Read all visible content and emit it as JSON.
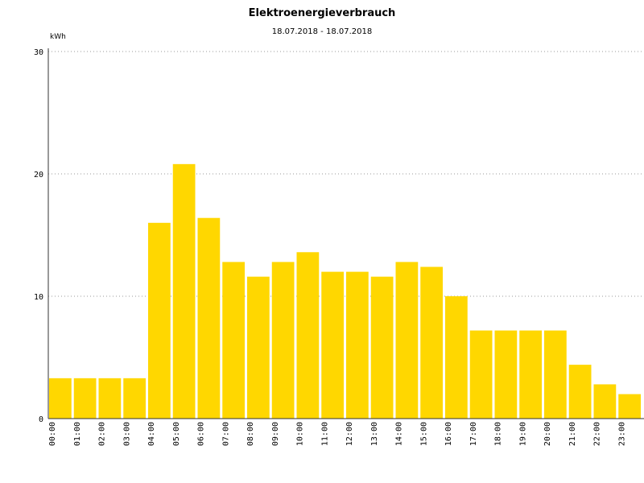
{
  "chart_data": {
    "type": "bar",
    "title": "Elektroenergieverbrauch",
    "subtitle": "18.07.2018 - 18.07.2018",
    "ylabel": "kWh",
    "xlabel": "",
    "ylim": [
      0,
      30
    ],
    "yticks": [
      "0",
      "10",
      "20",
      "30"
    ],
    "grid": true,
    "bar_color": "#ffd700",
    "categories": [
      "00:00",
      "01:00",
      "02:00",
      "03:00",
      "04:00",
      "05:00",
      "06:00",
      "07:00",
      "08:00",
      "09:00",
      "10:00",
      "11:00",
      "12:00",
      "13:00",
      "14:00",
      "15:00",
      "16:00",
      "17:00",
      "18:00",
      "19:00",
      "20:00",
      "21:00",
      "22:00",
      "23:00"
    ],
    "values": [
      3.3,
      3.3,
      3.3,
      3.3,
      16.0,
      20.8,
      16.4,
      12.8,
      11.6,
      12.8,
      13.6,
      12.0,
      12.0,
      11.6,
      12.8,
      12.4,
      10.0,
      7.2,
      7.2,
      7.2,
      7.2,
      4.4,
      2.8,
      2.0
    ]
  }
}
